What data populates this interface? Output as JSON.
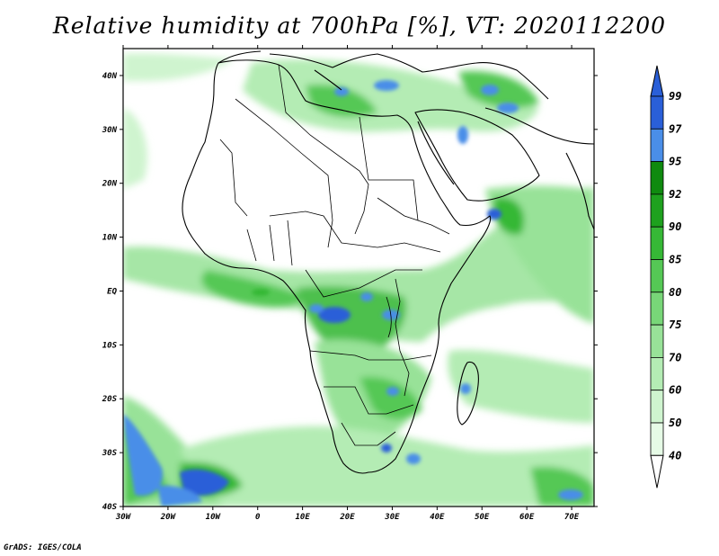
{
  "title": "Relative humidity at 700hPa [%], VT: 2020112200",
  "credit": "GrADS: IGES/COLA",
  "map": {
    "lon_labels": [
      "30W",
      "20W",
      "10W",
      "0",
      "10E",
      "20E",
      "30E",
      "40E",
      "50E",
      "60E",
      "70E"
    ],
    "lat_labels": [
      "40N",
      "30N",
      "20N",
      "10N",
      "EQ",
      "10S",
      "20S",
      "30S",
      "40S"
    ],
    "lon_range": [
      -30,
      75
    ],
    "lat_range": [
      -40,
      45
    ]
  },
  "colorbar": {
    "levels": [
      "99",
      "97",
      "95",
      "92",
      "90",
      "85",
      "80",
      "75",
      "70",
      "60",
      "50",
      "40"
    ],
    "colors": [
      "#2a5fd8",
      "#4a8ee8",
      "#0f8a0f",
      "#1ea11e",
      "#36b836",
      "#55c855",
      "#78d678",
      "#98e298",
      "#b4ecb4",
      "#cff4cf",
      "#e6fbe6"
    ]
  }
}
